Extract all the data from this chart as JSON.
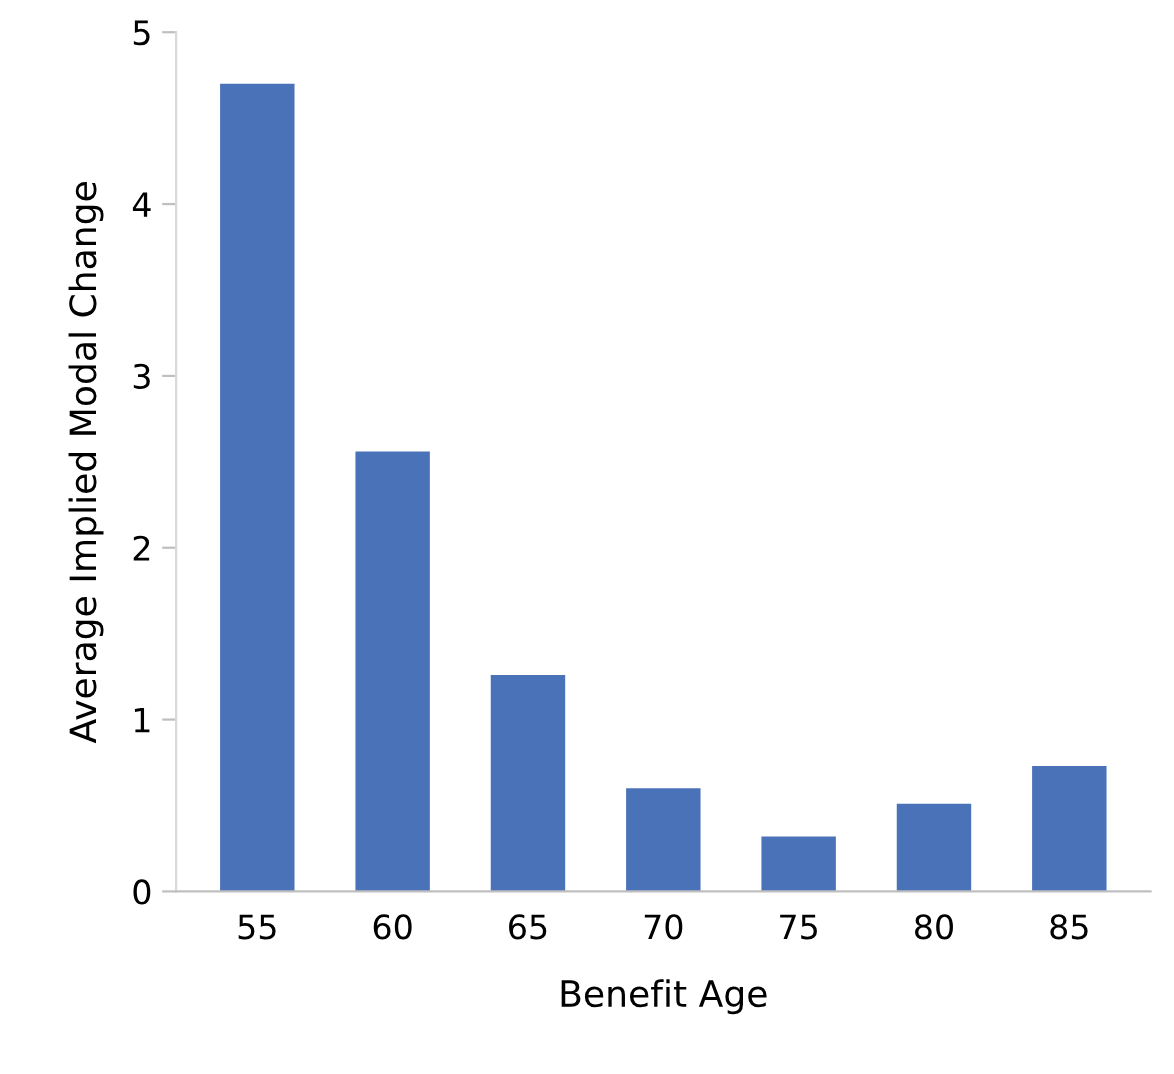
{
  "chart_data": {
    "type": "bar",
    "xlabel": "Benefit Age",
    "ylabel": "Average Implied Modal Change",
    "categories": [
      "55",
      "60",
      "65",
      "70",
      "75",
      "80",
      "85"
    ],
    "values": [
      4.7,
      2.56,
      1.26,
      0.6,
      0.32,
      0.51,
      0.73
    ],
    "color": "#4a72b8",
    "ylim": [
      0,
      5
    ],
    "yticks": [
      0,
      1,
      2,
      3,
      4,
      5
    ],
    "grid": false,
    "legend": false
  }
}
